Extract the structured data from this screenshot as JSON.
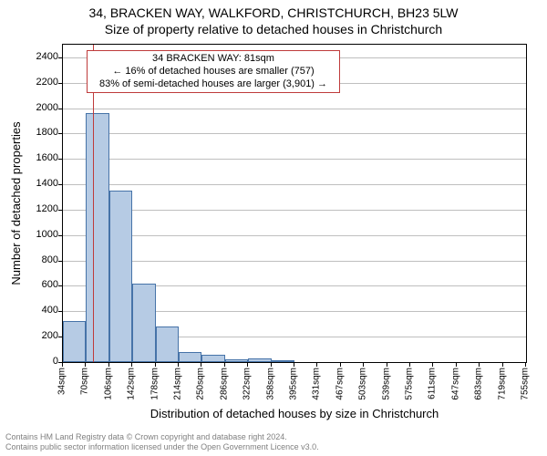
{
  "titles": {
    "line1": "34, BRACKEN WAY, WALKFORD, CHRISTCHURCH, BH23 5LW",
    "line2": "Size of property relative to detached houses in Christchurch"
  },
  "yaxis": {
    "label": "Number of detached properties",
    "min": 0,
    "max": 2500,
    "tick_step": 200,
    "ticks": [
      0,
      200,
      400,
      600,
      800,
      1000,
      1200,
      1400,
      1600,
      1800,
      2000,
      2200,
      2400
    ],
    "grid_color": "#bfbfbf"
  },
  "xaxis": {
    "label": "Distribution of detached houses by size in Christchurch",
    "tick_step_sqm": 36,
    "ticks": [
      "34sqm",
      "70sqm",
      "106sqm",
      "142sqm",
      "178sqm",
      "214sqm",
      "250sqm",
      "286sqm",
      "322sqm",
      "358sqm",
      "395sqm",
      "431sqm",
      "467sqm",
      "503sqm",
      "539sqm",
      "575sqm",
      "611sqm",
      "647sqm",
      "683sqm",
      "719sqm",
      "755sqm"
    ]
  },
  "bars": {
    "fill_color": "#b6cbe4",
    "stroke_color": "#4673a8",
    "stroke_width": 1,
    "values": [
      320,
      1960,
      1350,
      620,
      280,
      80,
      55,
      20,
      30,
      18
    ]
  },
  "marker": {
    "color": "#bf3b3b",
    "bin_index": 1,
    "fraction_in_bin": 0.31
  },
  "annotation": {
    "border_color": "#bf3b3b",
    "lines": [
      "34 BRACKEN WAY: 81sqm",
      "← 16% of detached houses are smaller (757)",
      "83% of semi-detached houses are larger (3,901) →"
    ]
  },
  "footer": {
    "color": "#808080",
    "line1": "Contains HM Land Registry data © Crown copyright and database right 2024.",
    "line2": "Contains public sector information licensed under the Open Government Licence v3.0."
  }
}
